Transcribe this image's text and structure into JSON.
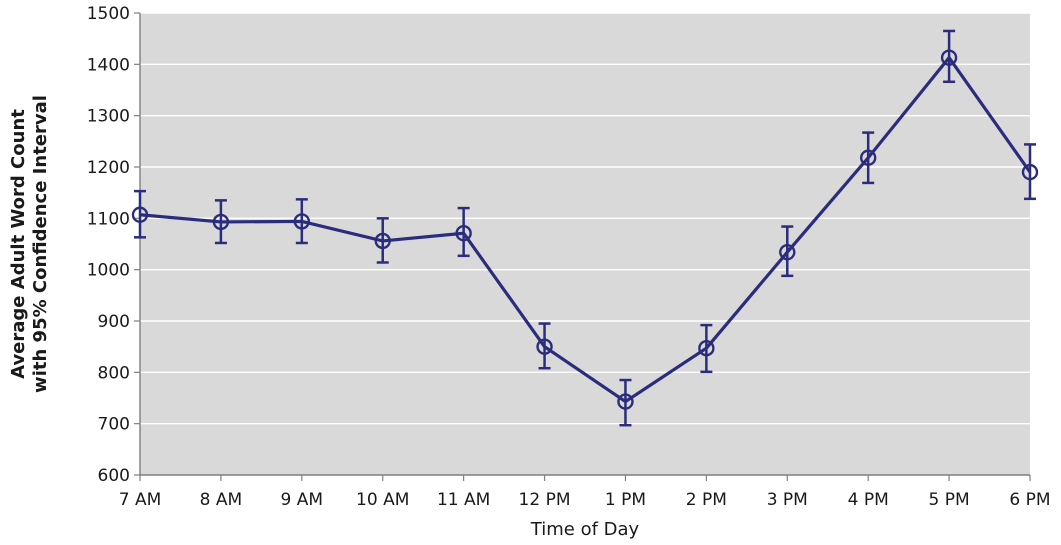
{
  "chart_data": {
    "type": "line",
    "title": "",
    "xlabel": "Time of Day",
    "ylabel_lines": [
      "Average Adult Word Count",
      "with 95% Confidence Interval"
    ],
    "categories": [
      "7 AM",
      "8 AM",
      "9 AM",
      "10 AM",
      "11 AM",
      "12 PM",
      "1 PM",
      "2 PM",
      "3 PM",
      "4 PM",
      "5 PM",
      "6 PM"
    ],
    "ylim": [
      600,
      1500
    ],
    "yticks": [
      600,
      700,
      800,
      900,
      1000,
      1100,
      1200,
      1300,
      1400,
      1500
    ],
    "grid": true,
    "legend": "none",
    "colors": {
      "line": "#2b2d7c",
      "plot_bg": "#d9d9da",
      "grid": "#ffffff",
      "axis": "#7f7f7f"
    },
    "series": [
      {
        "values": [
          1107,
          1093,
          1094,
          1056,
          1071,
          850,
          743,
          847,
          1034,
          1218,
          1413,
          1190
        ],
        "ci_low": [
          1063,
          1052,
          1052,
          1014,
          1027,
          808,
          697,
          801,
          988,
          1169,
          1366,
          1138
        ],
        "ci_high": [
          1153,
          1135,
          1137,
          1100,
          1120,
          895,
          785,
          892,
          1084,
          1267,
          1465,
          1244
        ]
      }
    ]
  }
}
